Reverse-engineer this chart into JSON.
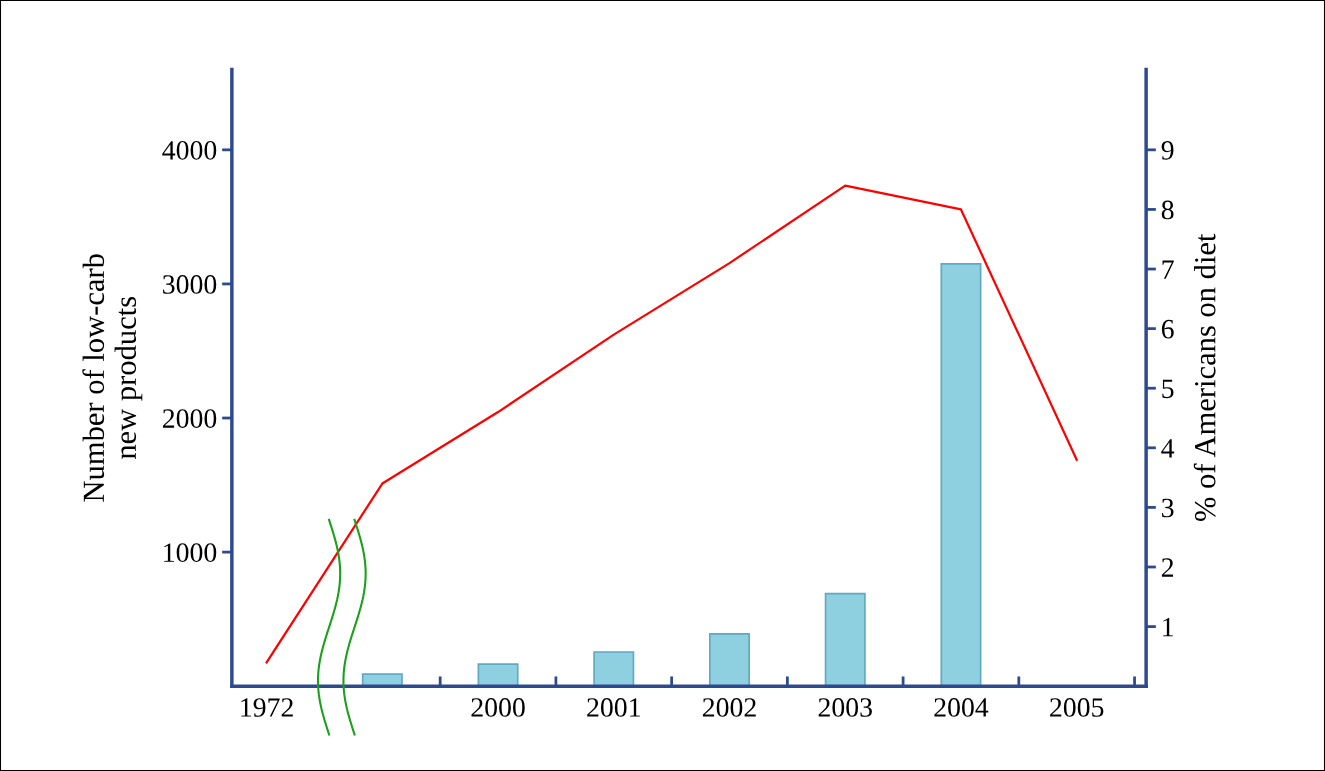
{
  "chart_data": {
    "type": "bar",
    "categories": [
      "1972",
      null,
      "2000",
      "2001",
      "2002",
      "2003",
      "2004",
      "2005"
    ],
    "ylabel": "Number of low-carb\nnew products",
    "y2label": "% of Americans on diet",
    "ylim": [
      0,
      4600
    ],
    "yticks": [
      1000,
      2000,
      3000,
      4000
    ],
    "y2lim": [
      0,
      10.35
    ],
    "y2ticks": [
      1,
      2,
      3,
      4,
      5,
      6,
      7,
      8,
      9
    ],
    "grid": false,
    "legend": false,
    "series": [
      {
        "color": "#8ecfe0",
        "values": [
          null,
          90,
          165,
          255,
          390,
          690,
          3150,
          null
        ]
      },
      {
        "type": "line",
        "axis": "y2",
        "color": "#ff0000",
        "values": [
          0.4,
          3.4,
          4.6,
          5.9,
          7.1,
          8.4,
          8.0,
          3.8
        ]
      }
    ]
  }
}
